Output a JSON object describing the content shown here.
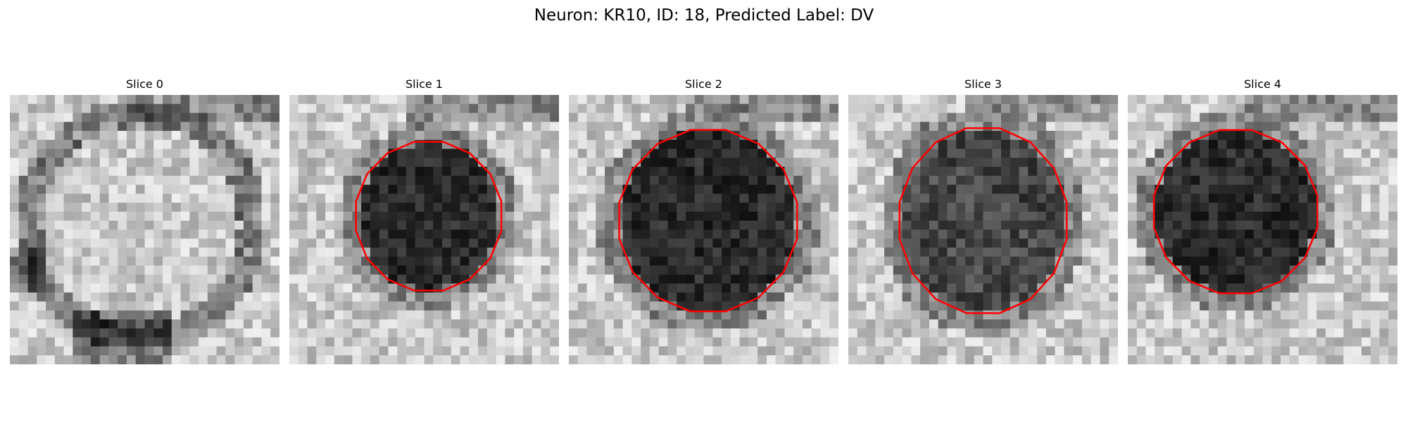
{
  "figure": {
    "title": "Neuron: KR10, ID: 18, Predicted Label: DV",
    "outline_color": "#ff0000",
    "panels": [
      {
        "title": "Slice 0",
        "has_outline": false
      },
      {
        "title": "Slice 1",
        "has_outline": true
      },
      {
        "title": "Slice 2",
        "has_outline": true
      },
      {
        "title": "Slice 3",
        "has_outline": true
      },
      {
        "title": "Slice 4",
        "has_outline": true
      }
    ]
  }
}
